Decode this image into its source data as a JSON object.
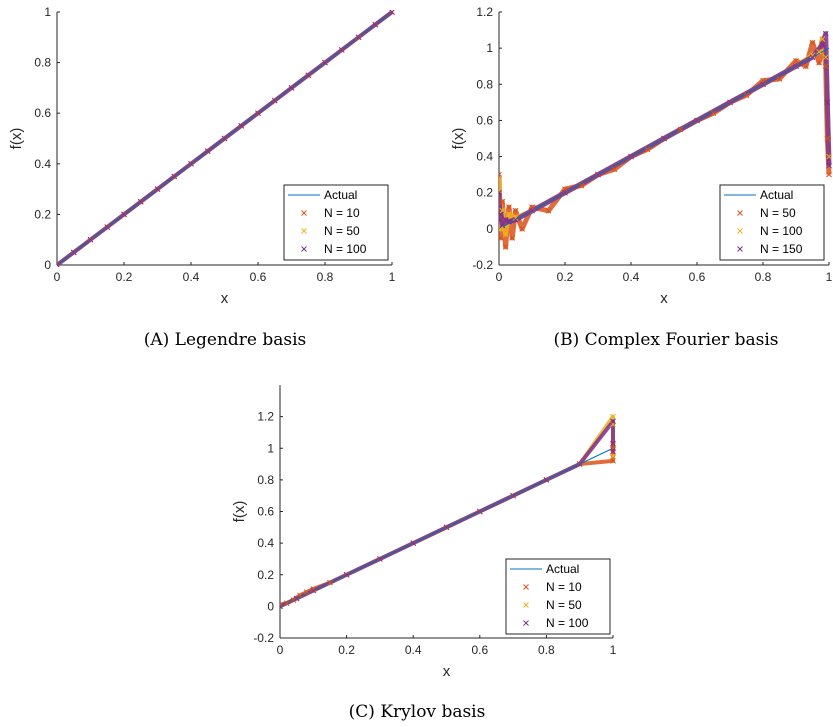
{
  "colors": {
    "actual": "#0072BD",
    "series1": "#D95319",
    "series2": "#EDB120",
    "series3": "#7E2F8E",
    "axis": "#262626"
  },
  "chart_data": [
    {
      "id": "a",
      "type": "scatter",
      "caption_prefix": "(A)",
      "caption": "Legendre basis",
      "xlabel": "x",
      "ylabel": "f(x)",
      "xlim": [
        0,
        1
      ],
      "ylim": [
        0,
        1
      ],
      "xticks": [
        0,
        0.2,
        0.4,
        0.6,
        0.8,
        1
      ],
      "yticks": [
        0,
        0.2,
        0.4,
        0.6,
        0.8,
        1
      ],
      "legend_position": "bottom-right",
      "legend": [
        "Actual",
        "N = 10",
        "N = 50",
        "N = 100"
      ],
      "series": [
        {
          "name": "Actual",
          "kind": "line",
          "x": [
            0,
            1
          ],
          "y": [
            0,
            1
          ]
        },
        {
          "name": "N = 10",
          "kind": "markers",
          "x": [
            0,
            0.05,
            0.1,
            0.15,
            0.2,
            0.25,
            0.3,
            0.35,
            0.4,
            0.45,
            0.5,
            0.55,
            0.6,
            0.65,
            0.7,
            0.75,
            0.8,
            0.85,
            0.9,
            0.95,
            1
          ],
          "y": [
            0,
            0.05,
            0.1,
            0.15,
            0.2,
            0.25,
            0.3,
            0.35,
            0.4,
            0.45,
            0.5,
            0.55,
            0.6,
            0.65,
            0.7,
            0.75,
            0.8,
            0.85,
            0.9,
            0.95,
            1
          ]
        },
        {
          "name": "N = 50",
          "kind": "markers",
          "x": [
            0,
            0.05,
            0.1,
            0.15,
            0.2,
            0.25,
            0.3,
            0.35,
            0.4,
            0.45,
            0.5,
            0.55,
            0.6,
            0.65,
            0.7,
            0.75,
            0.8,
            0.85,
            0.9,
            0.95,
            1
          ],
          "y": [
            0,
            0.05,
            0.1,
            0.15,
            0.2,
            0.25,
            0.3,
            0.35,
            0.4,
            0.45,
            0.5,
            0.55,
            0.6,
            0.65,
            0.7,
            0.75,
            0.8,
            0.85,
            0.9,
            0.95,
            1
          ]
        },
        {
          "name": "N = 100",
          "kind": "markers",
          "x": [
            0,
            0.05,
            0.1,
            0.15,
            0.2,
            0.25,
            0.3,
            0.35,
            0.4,
            0.45,
            0.5,
            0.55,
            0.6,
            0.65,
            0.7,
            0.75,
            0.8,
            0.85,
            0.9,
            0.95,
            1
          ],
          "y": [
            0,
            0.05,
            0.1,
            0.15,
            0.2,
            0.25,
            0.3,
            0.35,
            0.4,
            0.45,
            0.5,
            0.55,
            0.6,
            0.65,
            0.7,
            0.75,
            0.8,
            0.85,
            0.9,
            0.95,
            1
          ]
        }
      ]
    },
    {
      "id": "b",
      "type": "scatter",
      "caption_prefix": "(B)",
      "caption": "Complex Fourier basis",
      "xlabel": "x",
      "ylabel": "f(x)",
      "xlim": [
        0,
        1
      ],
      "ylim": [
        -0.2,
        1.2
      ],
      "xticks": [
        0,
        0.2,
        0.4,
        0.6,
        0.8,
        1
      ],
      "yticks": [
        -0.2,
        0,
        0.2,
        0.4,
        0.6,
        0.8,
        1,
        1.2
      ],
      "legend_position": "bottom-right",
      "legend": [
        "Actual",
        "N = 50",
        "N = 100",
        "N = 150"
      ],
      "series": [
        {
          "name": "Actual",
          "kind": "line",
          "x": [
            0,
            1
          ],
          "y": [
            0,
            1
          ]
        },
        {
          "name": "N = 50",
          "kind": "markers",
          "x": [
            0,
            0.005,
            0.01,
            0.02,
            0.03,
            0.04,
            0.05,
            0.07,
            0.1,
            0.15,
            0.2,
            0.25,
            0.3,
            0.35,
            0.4,
            0.45,
            0.5,
            0.55,
            0.6,
            0.65,
            0.7,
            0.75,
            0.8,
            0.85,
            0.9,
            0.93,
            0.95,
            0.97,
            0.98,
            0.99,
            0.995,
            1
          ],
          "y": [
            0.3,
            -0.05,
            0.15,
            -0.1,
            0.12,
            -0.05,
            0.1,
            0.0,
            0.12,
            0.1,
            0.22,
            0.24,
            0.3,
            0.33,
            0.4,
            0.44,
            0.5,
            0.55,
            0.6,
            0.64,
            0.7,
            0.74,
            0.82,
            0.83,
            0.93,
            0.9,
            1.03,
            0.92,
            1.05,
            0.9,
            0.5,
            0.3
          ]
        },
        {
          "name": "N = 100",
          "kind": "markers",
          "x": [
            0,
            0.005,
            0.01,
            0.02,
            0.03,
            0.05,
            0.1,
            0.2,
            0.3,
            0.4,
            0.5,
            0.6,
            0.7,
            0.8,
            0.9,
            0.95,
            0.97,
            0.98,
            0.99,
            1
          ],
          "y": [
            0.28,
            0.0,
            0.1,
            -0.03,
            0.08,
            0.06,
            0.1,
            0.2,
            0.3,
            0.4,
            0.5,
            0.6,
            0.7,
            0.8,
            0.9,
            0.96,
            0.98,
            1.05,
            0.95,
            0.4
          ]
        },
        {
          "name": "N = 150",
          "kind": "markers",
          "x": [
            0,
            0.003,
            0.006,
            0.01,
            0.02,
            0.03,
            0.05,
            0.1,
            0.2,
            0.3,
            0.4,
            0.5,
            0.6,
            0.7,
            0.8,
            0.9,
            0.95,
            0.98,
            0.99,
            0.995,
            1
          ],
          "y": [
            0.2,
            0.05,
            0.08,
            0.02,
            0.05,
            0.04,
            0.05,
            0.1,
            0.2,
            0.3,
            0.4,
            0.5,
            0.6,
            0.7,
            0.8,
            0.9,
            0.95,
            1.02,
            1.08,
            0.7,
            0.35
          ]
        }
      ]
    },
    {
      "id": "c",
      "type": "scatter",
      "caption_prefix": "(C)",
      "caption": "Krylov basis",
      "xlabel": "x",
      "ylabel": "f(x)",
      "xlim": [
        0,
        1
      ],
      "ylim": [
        -0.2,
        1.4
      ],
      "xticks": [
        0,
        0.2,
        0.4,
        0.6,
        0.8,
        1
      ],
      "yticks": [
        -0.2,
        0,
        0.2,
        0.4,
        0.6,
        0.8,
        1,
        1.2
      ],
      "legend_position": "bottom-right",
      "legend": [
        "Actual",
        "N = 10",
        "N = 50",
        "N = 100"
      ],
      "series": [
        {
          "name": "Actual",
          "kind": "line",
          "x": [
            0,
            1
          ],
          "y": [
            0,
            1
          ]
        },
        {
          "name": "N = 10",
          "kind": "markers",
          "x": [
            0,
            0.02,
            0.04,
            0.06,
            0.08,
            0.1,
            0.15,
            0.2,
            0.3,
            0.4,
            0.5,
            0.6,
            0.7,
            0.8,
            0.9,
            1,
            1,
            1,
            1
          ],
          "y": [
            0.01,
            0.02,
            0.04,
            0.07,
            0.09,
            0.11,
            0.15,
            0.2,
            0.3,
            0.4,
            0.5,
            0.6,
            0.7,
            0.8,
            0.9,
            0.92,
            0.97,
            1.02,
            1.0
          ]
        },
        {
          "name": "N = 50",
          "kind": "markers",
          "x": [
            0,
            0.05,
            0.1,
            0.2,
            0.3,
            0.4,
            0.5,
            0.6,
            0.7,
            0.8,
            0.9,
            1,
            1,
            1
          ],
          "y": [
            0,
            0.05,
            0.1,
            0.2,
            0.3,
            0.4,
            0.5,
            0.6,
            0.7,
            0.8,
            0.9,
            1.2,
            1.15,
            0.95
          ]
        },
        {
          "name": "N = 100",
          "kind": "markers",
          "x": [
            0,
            0.05,
            0.1,
            0.2,
            0.3,
            0.4,
            0.5,
            0.6,
            0.7,
            0.8,
            0.9,
            1,
            1,
            1
          ],
          "y": [
            0,
            0.05,
            0.1,
            0.2,
            0.3,
            0.4,
            0.5,
            0.6,
            0.7,
            0.8,
            0.9,
            1.17,
            1.03,
            0.98
          ]
        }
      ]
    }
  ]
}
